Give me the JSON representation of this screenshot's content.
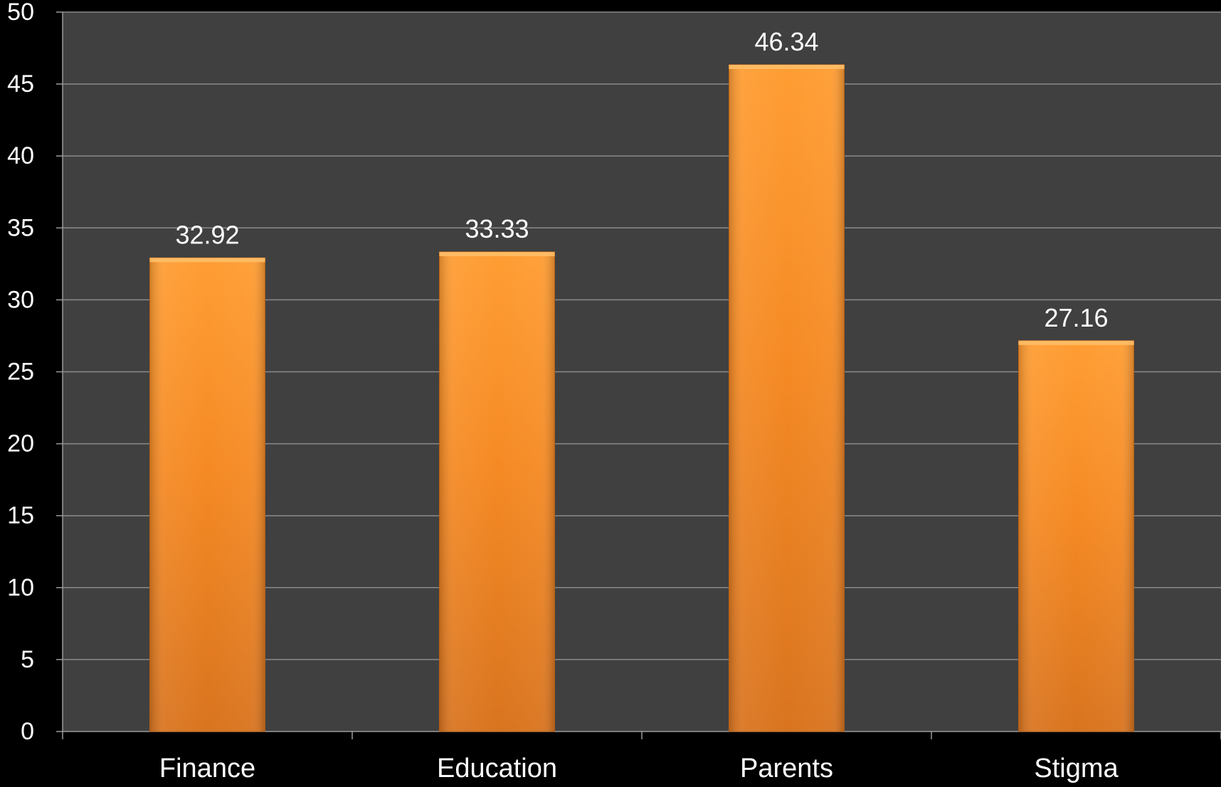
{
  "chart_data": {
    "type": "bar",
    "categories": [
      "Finance",
      "Education",
      "Parents",
      "Stigma"
    ],
    "values": [
      32.92,
      33.33,
      46.34,
      27.16
    ],
    "value_labels": [
      "32.92",
      "33.33",
      "46.34",
      "27.16"
    ],
    "title": "",
    "xlabel": "",
    "ylabel": "",
    "ylim": [
      0,
      50
    ],
    "yticks": [
      "0",
      "5",
      "10",
      "15",
      "20",
      "25",
      "30",
      "35",
      "40",
      "45",
      "50"
    ],
    "grid": "horizontal",
    "legend": "none",
    "colors": {
      "page_background": "#000000",
      "plot_background": "#404040",
      "gridline": "#8a8a8a",
      "bar_top": "#ff9d33",
      "bar_mid": "#f58a24",
      "bar_bottom": "#d9741f",
      "bar_edge": "#c86a1a",
      "text": "#ffffff",
      "axis": "#9a9a9a"
    }
  }
}
